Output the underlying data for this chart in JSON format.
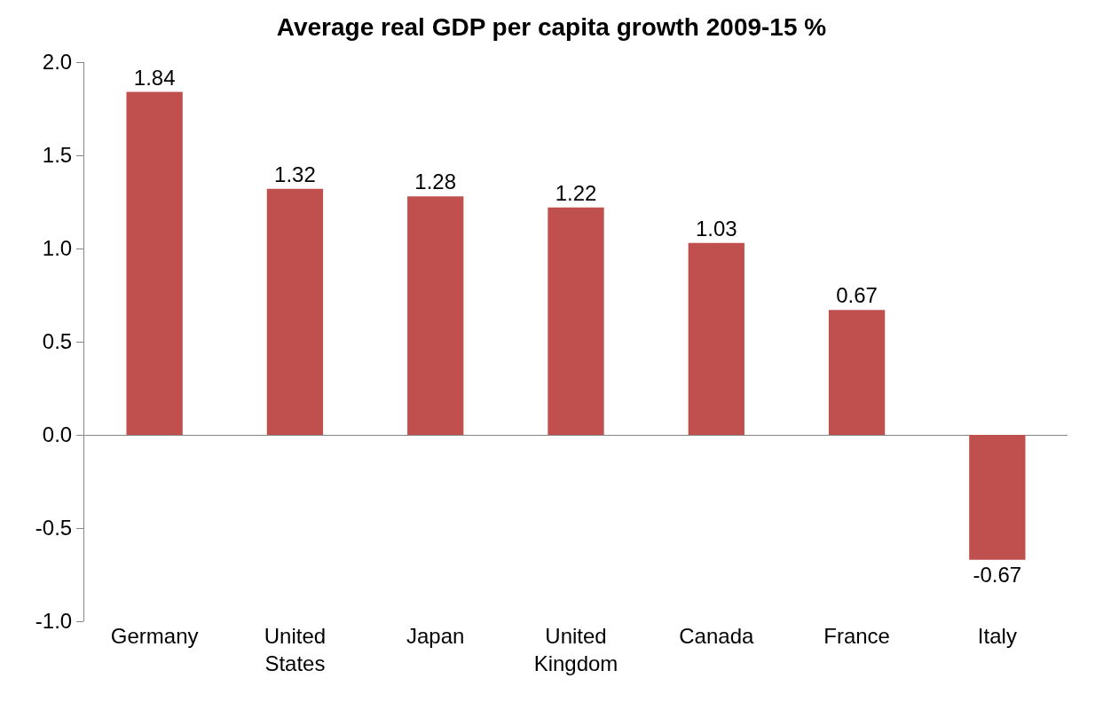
{
  "chart_data": {
    "type": "bar",
    "title": "Average real GDP per capita growth 2009-15 %",
    "categories": [
      "Germany",
      "United States",
      "Japan",
      "United Kingdom",
      "Canada",
      "France",
      "Italy"
    ],
    "values": [
      1.84,
      1.32,
      1.28,
      1.22,
      1.03,
      0.67,
      -0.67
    ],
    "color": "#c0504d",
    "ylim": [
      -1.0,
      2.0
    ],
    "yticks": [
      {
        "value": -1.0,
        "label": "-1.0"
      },
      {
        "value": -0.5,
        "label": "-0.5"
      },
      {
        "value": 0.0,
        "label": "0.0"
      },
      {
        "value": 0.5,
        "label": "0.5"
      },
      {
        "value": 1.0,
        "label": "1.0"
      },
      {
        "value": 1.5,
        "label": "1.5"
      },
      {
        "value": 2.0,
        "label": "2.0"
      }
    ],
    "data_labels": true,
    "legend": false
  }
}
